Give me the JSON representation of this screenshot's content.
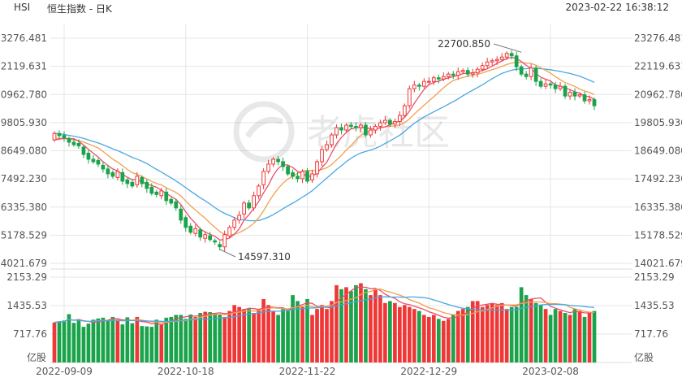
{
  "header": {
    "symbol": "HSI",
    "name": "恒生指数 - 日K",
    "datetime": "2023-02-22 16:38:12"
  },
  "watermark": "老虎社区",
  "colors": {
    "up": "#f03737",
    "down": "#1aa34a",
    "ma_short": "#e8506a",
    "ma_mid": "#f0a050",
    "ma_long": "#4aa8e0",
    "grid": "#e6e6e6"
  },
  "chart_data": {
    "type": "candlestick",
    "title": "恒生指数 - 日K",
    "price_ticks": [
      "23276.481",
      "22119.631",
      "20962.780",
      "19805.930",
      "18649.080",
      "17492.230",
      "16335.380",
      "15178.529",
      "14021.679"
    ],
    "ylim": [
      14021.679,
      23276.481
    ],
    "volume_ticks": [
      "2153.29",
      "1435.53",
      "717.76"
    ],
    "volume_unit": "亿股",
    "volume_ylim": [
      0,
      2153.29
    ],
    "x_ticks": [
      "2022-09-09",
      "2022-10-18",
      "2022-11-22",
      "2022-12-29",
      "2023-02-08"
    ],
    "x_tick_index": [
      2,
      27,
      52,
      77,
      102
    ],
    "annotations": [
      {
        "label": "22700.850",
        "index": 96,
        "value": 22700.85
      },
      {
        "label": "14597.310",
        "index": 34,
        "value": 14597.31
      }
    ],
    "close": [
      19360,
      19270,
      19180,
      19000,
      18900,
      18850,
      18500,
      18300,
      18200,
      18100,
      17900,
      17700,
      17600,
      17800,
      17400,
      17300,
      17200,
      17600,
      17300,
      17100,
      16900,
      16850,
      17000,
      16600,
      16500,
      16300,
      15800,
      15500,
      15300,
      15450,
      15100,
      15200,
      15000,
      14900,
      14700,
      15200,
      15500,
      15800,
      16000,
      16500,
      16300,
      16800,
      17200,
      17800,
      18100,
      18300,
      18200,
      18000,
      17700,
      17600,
      17500,
      17800,
      17400,
      17700,
      18200,
      18700,
      18900,
      19300,
      19600,
      19500,
      19700,
      19650,
      19600,
      19700,
      19300,
      19500,
      19650,
      19800,
      19900,
      19750,
      19850,
      20100,
      20500,
      21200,
      21350,
      21300,
      21500,
      21500,
      21650,
      21600,
      21700,
      21800,
      21750,
      21900,
      21950,
      21800,
      21850,
      22000,
      22150,
      22300,
      22350,
      22400,
      22500,
      22650,
      22550,
      22100,
      21800,
      21700,
      22050,
      21500,
      21300,
      21400,
      21350,
      21200,
      21300,
      20900,
      21050,
      20900,
      20950,
      20700,
      20750,
      20500
    ],
    "open": [
      19100,
      19360,
      19280,
      19150,
      19000,
      18950,
      18800,
      18550,
      18300,
      18250,
      18050,
      17900,
      17750,
      17550,
      17750,
      17450,
      17350,
      17250,
      17550,
      17350,
      17150,
      16950,
      16800,
      16950,
      16650,
      16550,
      16250,
      15900,
      15550,
      15250,
      15400,
      15050,
      15150,
      14950,
      14800,
      14700,
      15150,
      15500,
      15800,
      16050,
      16500,
      16300,
      16800,
      17250,
      17800,
      18100,
      18300,
      18200,
      18000,
      17750,
      17600,
      17500,
      17800,
      17450,
      17700,
      18200,
      18700,
      18900,
      19300,
      19600,
      19500,
      19700,
      19650,
      19600,
      19700,
      19300,
      19500,
      19650,
      19800,
      19900,
      19750,
      19850,
      20100,
      20500,
      21200,
      21350,
      21300,
      21500,
      21500,
      21650,
      21600,
      21700,
      21800,
      21750,
      21900,
      21950,
      21800,
      21850,
      22000,
      22150,
      22300,
      22350,
      22400,
      22500,
      22650,
      22550,
      22100,
      21800,
      21700,
      22050,
      21500,
      21300,
      21400,
      21350,
      21200,
      21300,
      20900,
      21050,
      20900,
      20950,
      20700,
      20750
    ],
    "volume": [
      1010,
      1040,
      1060,
      1220,
      1000,
      1090,
      900,
      980,
      1080,
      1110,
      1130,
      1050,
      1150,
      1080,
      960,
      1140,
      990,
      1150,
      920,
      910,
      900,
      1080,
      960,
      1130,
      1150,
      1200,
      1200,
      1100,
      1210,
      1150,
      1250,
      1280,
      1270,
      1250,
      1220,
      1150,
      1300,
      1450,
      1400,
      1350,
      1350,
      1250,
      1350,
      1600,
      1450,
      1300,
      1200,
      1350,
      1300,
      1700,
      1550,
      1400,
      1600,
      1200,
      1350,
      1450,
      1350,
      1550,
      1950,
      1850,
      1900,
      1800,
      1950,
      2000,
      1850,
      1700,
      1850,
      1700,
      1500,
      1550,
      1500,
      1400,
      1450,
      1400,
      1350,
      1300,
      1200,
      1150,
      1200,
      1100,
      1050,
      1100,
      1200,
      1300,
      1350,
      1400,
      1550,
      1550,
      1400,
      1450,
      1500,
      1450,
      1500,
      1350,
      1400,
      1400,
      1900,
      1700,
      1600,
      1500,
      1450,
      1350,
      1200,
      1350,
      1300,
      1250,
      1200,
      1350,
      1300,
      1150,
      1250,
      1300
    ],
    "series": [],
    "grid": true
  }
}
